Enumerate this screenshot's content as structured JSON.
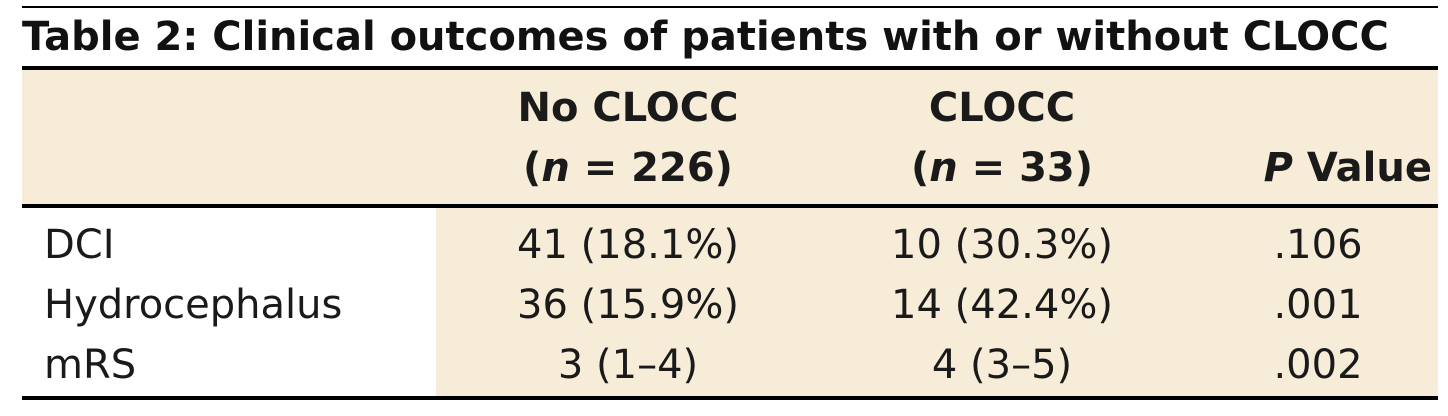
{
  "title": "Table 2: Clinical outcomes of patients with or without CLOCC",
  "columns": [
    {
      "line1": "No CLOCC",
      "n_open": "(",
      "n_var": "n",
      "n_eq": " = 226)"
    },
    {
      "line1": "CLOCC",
      "n_open": "(",
      "n_var": "n",
      "n_eq": " = 33)"
    },
    {
      "p_var": "P",
      "p_rest": " Value"
    }
  ],
  "rows": [
    {
      "label": "DCI",
      "no_clocc": "41 (18.1%)",
      "clocc": "10 (30.3%)",
      "p": ".106"
    },
    {
      "label": "Hydrocephalus",
      "no_clocc": "36 (15.9%)",
      "clocc": "14 (42.4%)",
      "p": ".001"
    },
    {
      "label": "mRS",
      "no_clocc": "3 (1–4)",
      "clocc": "4 (3–5)",
      "p": ".002"
    }
  ],
  "colors": {
    "band": "#f6ecd8",
    "rule": "#000000"
  }
}
